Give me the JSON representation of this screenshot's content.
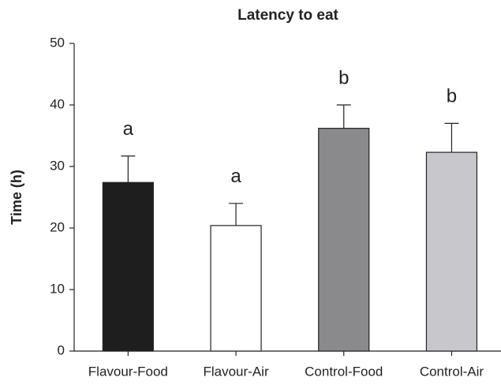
{
  "chart_data": {
    "type": "bar",
    "title": "Latency to eat",
    "y_label": "Time (h)",
    "categories": [
      "Flavour-Food",
      "Flavour-Air",
      "Control-Food",
      "Control-Air"
    ],
    "values": [
      27.4,
      20.4,
      36.2,
      32.3
    ],
    "errors": [
      4.3,
      3.6,
      3.8,
      4.7
    ],
    "colors": [
      "#1e1e1e",
      "#ffffff",
      "#8a8a8c",
      "#c8c8cc"
    ],
    "annotations": [
      "a",
      "a",
      "b",
      "b"
    ],
    "ylim": [
      0,
      50
    ],
    "yticks": [
      0,
      10,
      20,
      30,
      40,
      50
    ],
    "grid": false
  }
}
